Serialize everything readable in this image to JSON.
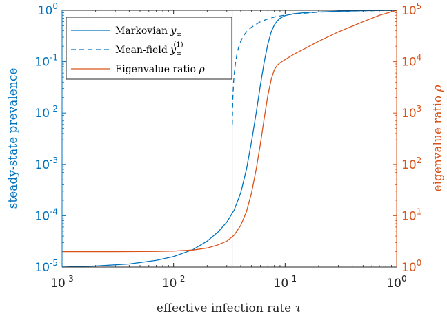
{
  "chart_data": {
    "type": "line",
    "xlabel": "effective infection rate",
    "xlabel_symbol": "τ",
    "ylabel_left": "steady-state prevalence",
    "ylabel_right": "eigenvalue ratio",
    "ylabel_right_symbol": "ρ",
    "xscale": "log",
    "xlim": [
      0.001,
      1
    ],
    "x_ticks": [
      {
        "base": "10",
        "exp": "-3"
      },
      {
        "base": "10",
        "exp": "-2"
      },
      {
        "base": "10",
        "exp": "-1"
      },
      {
        "base": "10",
        "exp": "0"
      }
    ],
    "y_left": {
      "scale": "log",
      "ylim": [
        1e-05,
        1
      ],
      "ticks": [
        {
          "base": "10",
          "exp": "-5"
        },
        {
          "base": "10",
          "exp": "-4"
        },
        {
          "base": "10",
          "exp": "-3"
        },
        {
          "base": "10",
          "exp": "-2"
        },
        {
          "base": "10",
          "exp": "-1"
        },
        {
          "base": "10",
          "exp": "0"
        }
      ],
      "color": "#0072BD"
    },
    "y_right": {
      "scale": "log",
      "ylim": [
        1,
        100000
      ],
      "ticks": [
        {
          "base": "10",
          "exp": "0"
        },
        {
          "base": "10",
          "exp": "1"
        },
        {
          "base": "10",
          "exp": "2"
        },
        {
          "base": "10",
          "exp": "3"
        },
        {
          "base": "10",
          "exp": "4"
        },
        {
          "base": "10",
          "exp": "5"
        }
      ],
      "color": "#D95319"
    },
    "vline_x": 0.0335,
    "legend_position": "top-left",
    "series": [
      {
        "name": "Markovian",
        "symbol": "y",
        "subscript": "∞",
        "axis": "left",
        "style": "solid",
        "color": "#0072BD",
        "x": [
          0.001,
          0.002,
          0.004,
          0.007,
          0.01,
          0.015,
          0.02,
          0.025,
          0.03,
          0.035,
          0.04,
          0.045,
          0.05,
          0.055,
          0.06,
          0.065,
          0.07,
          0.075,
          0.08,
          0.085,
          0.09,
          0.1,
          0.12,
          0.15,
          0.2,
          0.3,
          0.5,
          0.7,
          1.0
        ],
        "y": [
          1e-05,
          1.05e-05,
          1.15e-05,
          1.35e-05,
          1.6e-05,
          2.2e-05,
          3.2e-05,
          4.8e-05,
          7.5e-05,
          0.00013,
          0.00028,
          0.0008,
          0.0028,
          0.01,
          0.035,
          0.1,
          0.22,
          0.38,
          0.52,
          0.62,
          0.7,
          0.79,
          0.86,
          0.9,
          0.93,
          0.96,
          0.98,
          0.99,
          1.0
        ]
      },
      {
        "name": "Mean-field",
        "symbol": "y",
        "subscript": "∞",
        "superscript": "(1)",
        "axis": "left",
        "style": "dashed",
        "color": "#0072BD",
        "x": [
          0.0336,
          0.0338,
          0.034,
          0.0345,
          0.035,
          0.036,
          0.037,
          0.038,
          0.04,
          0.042,
          0.045,
          0.05,
          0.06,
          0.07,
          0.08,
          0.1,
          0.15,
          0.2,
          0.3,
          0.5,
          1.0
        ],
        "y": [
          0.006,
          0.012,
          0.02,
          0.04,
          0.06,
          0.1,
          0.14,
          0.18,
          0.25,
          0.31,
          0.38,
          0.47,
          0.6,
          0.68,
          0.74,
          0.81,
          0.88,
          0.92,
          0.95,
          0.98,
          1.0
        ]
      },
      {
        "name": "Eigenvalue ratio",
        "symbol": "ρ",
        "axis": "right",
        "style": "solid",
        "color": "#D95319",
        "x": [
          0.001,
          0.003,
          0.007,
          0.01,
          0.015,
          0.02,
          0.025,
          0.03,
          0.035,
          0.04,
          0.045,
          0.05,
          0.055,
          0.06,
          0.065,
          0.07,
          0.075,
          0.08,
          0.085,
          0.09,
          0.1,
          0.12,
          0.15,
          0.2,
          0.3,
          0.5,
          0.7,
          1.0
        ],
        "y": [
          2.0,
          2.0,
          2.02,
          2.05,
          2.15,
          2.35,
          2.7,
          3.2,
          4.2,
          6.5,
          12,
          28,
          80,
          250,
          800,
          2200,
          4500,
          7000,
          8500,
          9500,
          11000,
          14000,
          18000,
          25000,
          38000,
          60000,
          80000,
          100000
        ]
      }
    ]
  }
}
